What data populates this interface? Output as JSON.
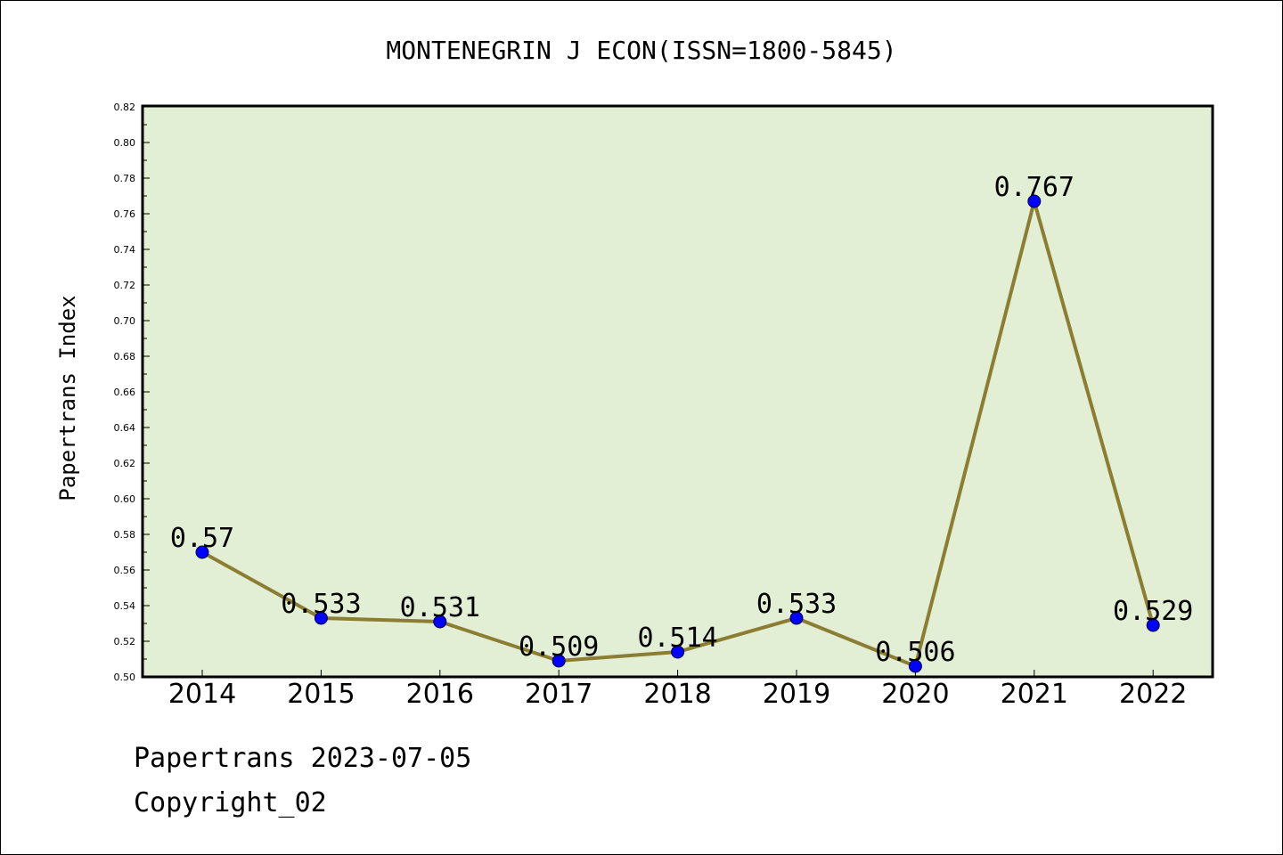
{
  "chart_data": {
    "type": "line",
    "title": "MONTENEGRIN J ECON(ISSN=1800-5845)",
    "xlabel": "",
    "ylabel": "Papertrans Index",
    "categories": [
      "2014",
      "2015",
      "2016",
      "2017",
      "2018",
      "2019",
      "2020",
      "2021",
      "2022"
    ],
    "values": [
      0.57,
      0.533,
      0.531,
      0.509,
      0.514,
      0.533,
      0.506,
      0.767,
      0.529
    ],
    "data_labels": [
      "0.57",
      "0.533",
      "0.531",
      "0.509",
      "0.514",
      "0.533",
      "0.506",
      "0.767",
      "0.529"
    ],
    "ylim": [
      0.5,
      0.82
    ],
    "yticks": [
      "0.50",
      "0.52",
      "0.54",
      "0.56",
      "0.58",
      "0.60",
      "0.62",
      "0.64",
      "0.66",
      "0.68",
      "0.70",
      "0.72",
      "0.74",
      "0.76",
      "0.78",
      "0.80",
      "0.82"
    ],
    "grid": false,
    "legend": "none",
    "colors": {
      "plot_background": "#e2efd5",
      "line": "#8b7d32",
      "marker": "#0000ff"
    }
  },
  "footer": {
    "line1": "Papertrans 2023-07-05",
    "line2": "Copyright_02"
  }
}
